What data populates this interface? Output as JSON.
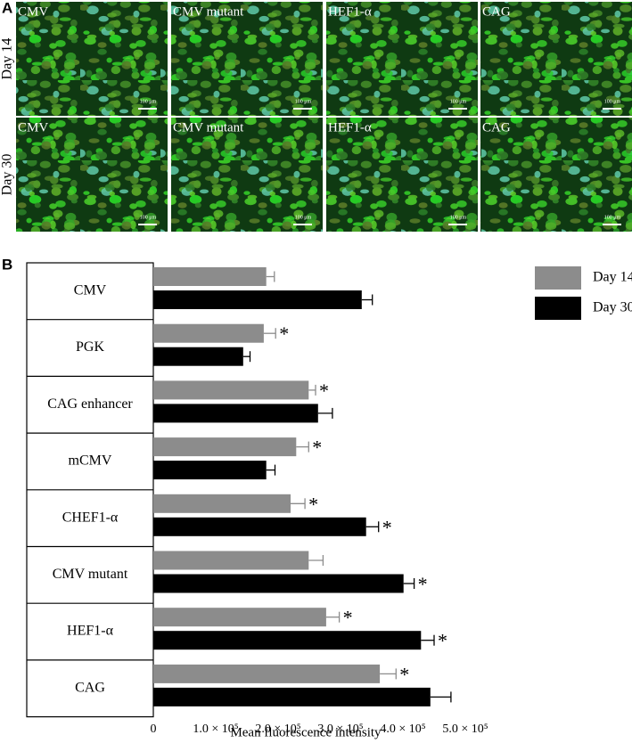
{
  "panel_a": {
    "label": "A",
    "rows": [
      {
        "label": "Day 14",
        "images": [
          "CMV",
          "CMV mutant",
          "HEF1-α",
          "CAG"
        ]
      },
      {
        "label": "Day 30",
        "images": [
          "CMV",
          "CMV mutant",
          "HEF1-α",
          "CAG"
        ]
      }
    ],
    "scale_bar": "100 μm"
  },
  "chart_data": {
    "type": "hbar",
    "panel_label": "B",
    "xlabel": "Mean fluorescence intensity",
    "categories": [
      "CMV",
      "PGK",
      "CAG enhancer",
      "mCMV",
      "CHEF1-α",
      "CMV mutant",
      "HEF1-α",
      "CAG"
    ],
    "series": [
      {
        "name": "Day 14",
        "color": "#8c8c8c",
        "values": [
          181000,
          177000,
          249000,
          229000,
          220000,
          249000,
          277000,
          363000
        ],
        "errors": [
          13000,
          19000,
          11000,
          20000,
          23000,
          23000,
          21000,
          26000
        ],
        "significant": [
          false,
          true,
          true,
          true,
          true,
          false,
          true,
          true
        ]
      },
      {
        "name": "Day 30",
        "color": "#000000",
        "values": [
          334000,
          144000,
          264000,
          181000,
          341000,
          401000,
          429000,
          444000
        ],
        "errors": [
          17000,
          11000,
          23000,
          14000,
          20000,
          17000,
          21000,
          33000
        ],
        "significant": [
          false,
          false,
          false,
          false,
          true,
          true,
          true,
          false
        ]
      }
    ],
    "significance_label": "*",
    "xlim": [
      0,
      540000
    ],
    "xticks": [
      0,
      {
        "value": 100000,
        "label": "1.0 × 10⁵"
      },
      {
        "value": 200000,
        "label": "2.0 × 10⁵"
      },
      {
        "value": 300000,
        "label": "3.0 × 10⁵"
      },
      {
        "value": 400000,
        "label": "4.0 × 10⁵"
      },
      {
        "value": 500000,
        "label": "5.0 × 10⁵"
      }
    ],
    "legend": "upper right"
  }
}
